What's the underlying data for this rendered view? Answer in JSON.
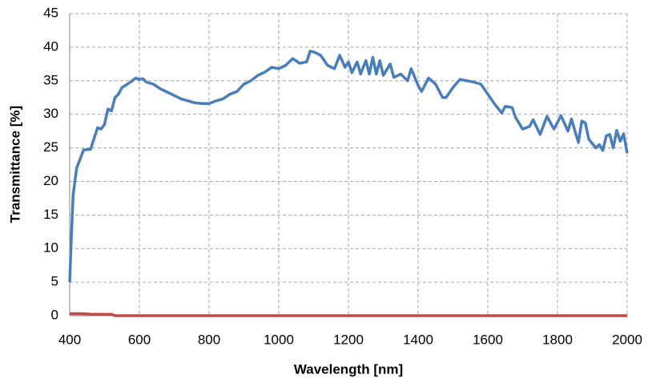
{
  "chart_data": {
    "type": "line",
    "x_label": "Wavelength [nm]",
    "y_label": "Transmittance [%]",
    "x": [
      400,
      405,
      410,
      420,
      440,
      460,
      480,
      490,
      500,
      510,
      520,
      530,
      540,
      550,
      560,
      580,
      590,
      600,
      610,
      620,
      640,
      660,
      680,
      700,
      720,
      740,
      760,
      780,
      800,
      820,
      840,
      860,
      880,
      900,
      920,
      940,
      960,
      980,
      1000,
      1020,
      1040,
      1060,
      1080,
      1090,
      1100,
      1120,
      1140,
      1160,
      1175,
      1190,
      1200,
      1210,
      1225,
      1235,
      1250,
      1260,
      1270,
      1280,
      1290,
      1300,
      1320,
      1330,
      1350,
      1370,
      1380,
      1400,
      1410,
      1430,
      1450,
      1470,
      1480,
      1500,
      1520,
      1540,
      1560,
      1580,
      1600,
      1620,
      1640,
      1650,
      1670,
      1680,
      1700,
      1720,
      1730,
      1750,
      1770,
      1790,
      1810,
      1830,
      1840,
      1860,
      1870,
      1880,
      1890,
      1910,
      1920,
      1930,
      1940,
      1950,
      1960,
      1970,
      1980,
      1990,
      2000
    ],
    "series": [
      {
        "color": "#4a7ebb",
        "values": [
          5,
          12,
          18,
          22,
          24.7,
          24.8,
          28,
          27.8,
          28.5,
          30.8,
          30.5,
          32.5,
          33,
          34,
          34.3,
          35,
          35.4,
          35.2,
          35.3,
          34.8,
          34.5,
          33.8,
          33.3,
          32.8,
          32.3,
          32,
          31.7,
          31.6,
          31.6,
          32,
          32.3,
          33,
          33.4,
          34.5,
          35,
          35.8,
          36.3,
          37,
          36.8,
          37.3,
          38.3,
          37.6,
          37.8,
          39.4,
          39.3,
          38.8,
          37.3,
          36.8,
          38.8,
          37,
          37.8,
          36.2,
          37.8,
          36,
          38,
          36,
          38.5,
          36,
          38,
          35.8,
          37.5,
          35.5,
          36,
          35,
          36.8,
          34.3,
          33.4,
          35.4,
          34.5,
          32.5,
          32.5,
          34,
          35.2,
          35,
          34.8,
          34.5,
          33,
          31.5,
          30.2,
          31.2,
          31,
          29.5,
          27.8,
          28.2,
          29.2,
          27,
          29.7,
          27.8,
          29.8,
          27.5,
          29.3,
          25.8,
          29,
          28.7,
          26.3,
          25,
          25.5,
          24.6,
          26.8,
          27,
          25,
          27.6,
          26,
          27.1,
          24.2
        ]
      },
      {
        "color": "#be4b48",
        "values": [
          0.3,
          0.3,
          0.3,
          0.3,
          0.3,
          0.2,
          0.2,
          0.2,
          0.2,
          0.2,
          0.2,
          0,
          0,
          0,
          0,
          0,
          0,
          0,
          0,
          0,
          0,
          0,
          0,
          0,
          0,
          0,
          0,
          0,
          0,
          0,
          0,
          0,
          0,
          0,
          0,
          0,
          0,
          0,
          0,
          0,
          0,
          0,
          0,
          0,
          0,
          0,
          0,
          0,
          0,
          0,
          0,
          0,
          0,
          0,
          0,
          0,
          0,
          0,
          0,
          0,
          0,
          0,
          0,
          0,
          0,
          0,
          0,
          0,
          0,
          0,
          0,
          0,
          0,
          0,
          0,
          0,
          0,
          0,
          0,
          0,
          0,
          0,
          0,
          0,
          0,
          0,
          0,
          0,
          0,
          0,
          0,
          0,
          0,
          0,
          0,
          0,
          0,
          0,
          0,
          0,
          0,
          0,
          0,
          0,
          0
        ]
      }
    ],
    "xlim": [
      400,
      2000
    ],
    "xticks": [
      400,
      600,
      800,
      1000,
      1200,
      1400,
      1600,
      1800,
      2000
    ],
    "ylim": [
      0,
      45
    ],
    "yticks": [
      0,
      5,
      10,
      15,
      20,
      25,
      30,
      35,
      40,
      45
    ],
    "grid": true
  }
}
